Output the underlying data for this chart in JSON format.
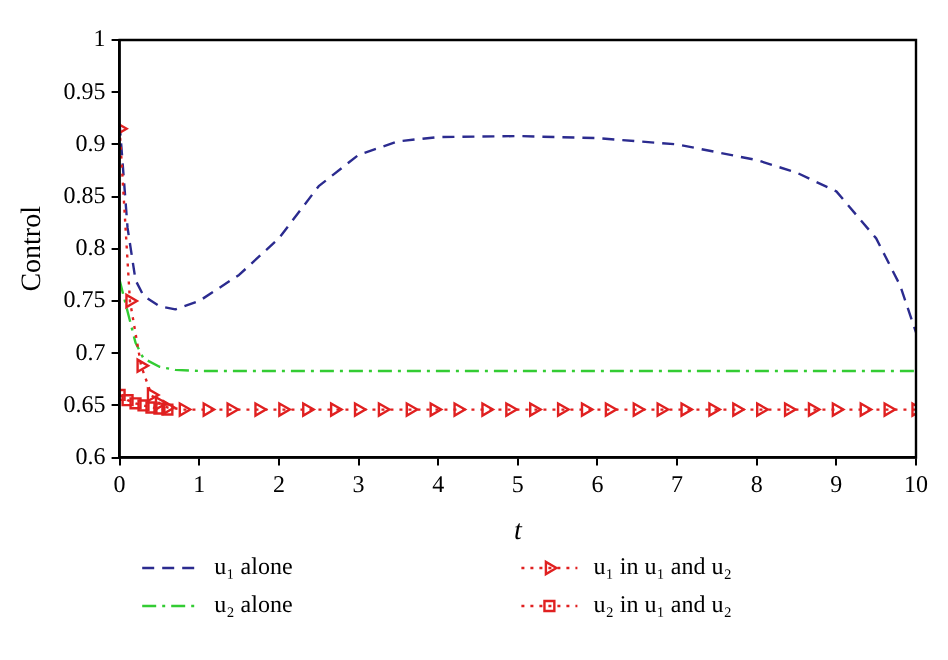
{
  "chart_data": {
    "type": "line",
    "xlabel": "t",
    "ylabel": "Control",
    "xlim": [
      0,
      10
    ],
    "xticks": [
      0,
      1,
      2,
      3,
      4,
      5,
      6,
      7,
      8,
      9,
      10
    ],
    "ylim": [
      0.6,
      1
    ],
    "yticks": [
      0.6,
      0.65,
      0.7,
      0.75,
      0.8,
      0.85,
      0.9,
      0.95,
      1
    ],
    "grid": false,
    "legend": "bottom",
    "series": [
      {
        "name": "u₁ alone",
        "color": "#2b2b8f",
        "line_style": "dashed",
        "marker": "none",
        "x": [
          0,
          0.1,
          0.2,
          0.3,
          0.5,
          0.7,
          1,
          1.5,
          2,
          2.5,
          3,
          3.5,
          4,
          5,
          6,
          7,
          8,
          8.5,
          9,
          9.5,
          9.8,
          10
        ],
        "values": [
          0.92,
          0.82,
          0.77,
          0.755,
          0.745,
          0.742,
          0.75,
          0.775,
          0.81,
          0.86,
          0.89,
          0.903,
          0.907,
          0.908,
          0.906,
          0.9,
          0.885,
          0.873,
          0.855,
          0.81,
          0.765,
          0.72
        ]
      },
      {
        "name": "u₂ alone",
        "color": "#33cc33",
        "line_style": "dashdot",
        "marker": "none",
        "x": [
          0,
          0.1,
          0.2,
          0.3,
          0.5,
          0.7,
          1,
          10
        ],
        "values": [
          0.77,
          0.74,
          0.71,
          0.695,
          0.687,
          0.684,
          0.683,
          0.683
        ]
      },
      {
        "name": "u₁ in u₁ and u₂",
        "color": "#e02020",
        "line_style": "dotted",
        "marker": "triangle",
        "x": [
          0,
          0.13,
          0.27,
          0.4,
          0.5,
          0.6,
          0.8,
          1.1,
          1.4,
          1.75,
          2.05,
          2.35,
          2.7,
          3.0,
          3.3,
          3.65,
          3.95,
          4.25,
          4.6,
          4.9,
          5.2,
          5.55,
          5.85,
          6.15,
          6.5,
          6.8,
          7.1,
          7.45,
          7.75,
          8.05,
          8.4,
          8.7,
          9.0,
          9.35,
          9.65,
          10
        ],
        "values": [
          0.915,
          0.75,
          0.688,
          0.66,
          0.652,
          0.648,
          0.646,
          0.646,
          0.646,
          0.646,
          0.646,
          0.646,
          0.646,
          0.646,
          0.646,
          0.646,
          0.646,
          0.646,
          0.646,
          0.646,
          0.646,
          0.646,
          0.646,
          0.646,
          0.646,
          0.646,
          0.646,
          0.646,
          0.646,
          0.646,
          0.646,
          0.646,
          0.646,
          0.646,
          0.646,
          0.646
        ]
      },
      {
        "name": "u₂ in u₁ and u₂",
        "color": "#e02020",
        "line_style": "dotted",
        "marker": "square",
        "x": [
          0,
          0.1,
          0.2,
          0.3,
          0.4,
          0.5,
          0.6
        ],
        "values": [
          0.66,
          0.655,
          0.652,
          0.65,
          0.648,
          0.647,
          0.646
        ]
      }
    ]
  }
}
